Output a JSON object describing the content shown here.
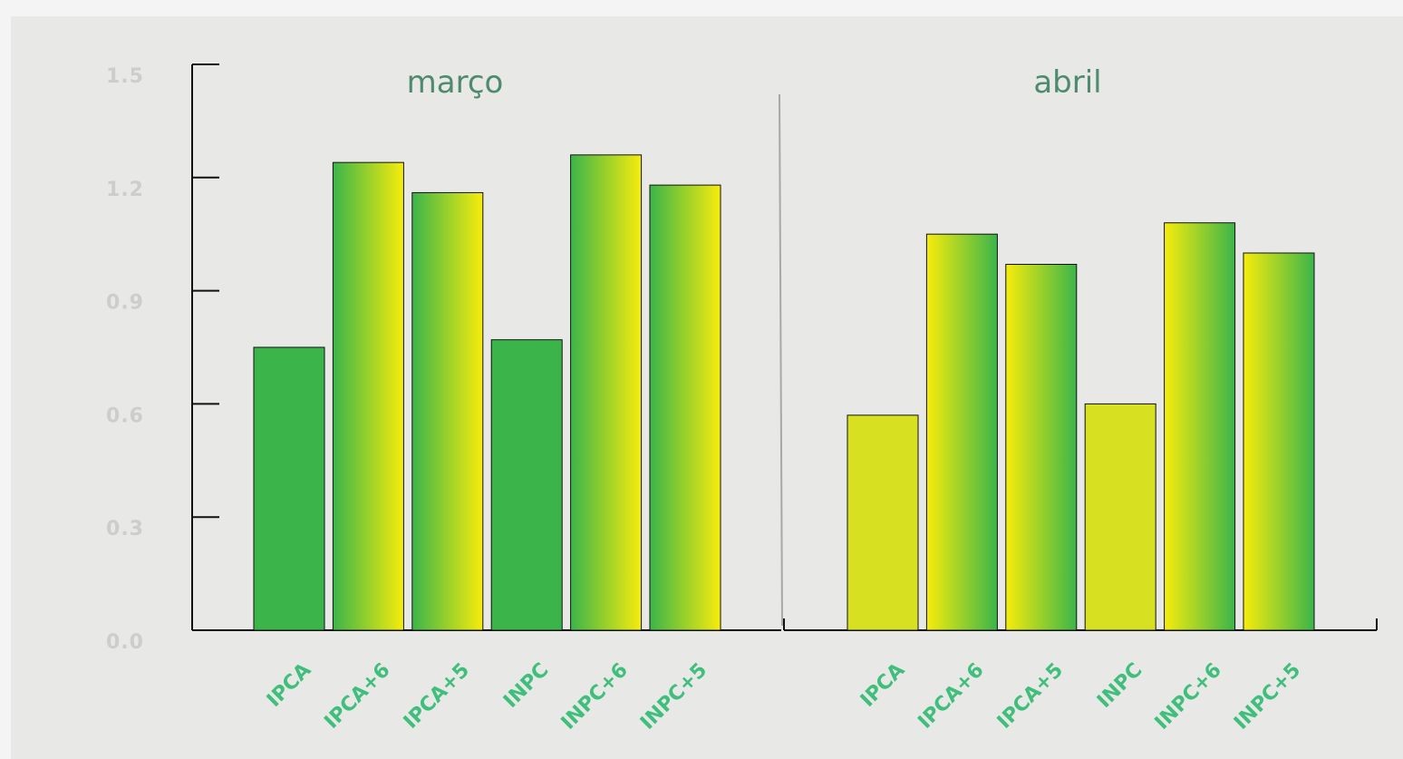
{
  "chart_data": {
    "type": "bar",
    "groups": [
      {
        "title": "março",
        "categories": [
          "IPCA",
          "IPCA+6",
          "IPCA+5",
          "INPC",
          "INPC+6",
          "INPC+5"
        ],
        "values": [
          0.75,
          1.24,
          1.16,
          0.77,
          1.26,
          1.18
        ]
      },
      {
        "title": "abril",
        "categories": [
          "IPCA",
          "IPCA+6",
          "IPCA+5",
          "INPC",
          "INPC+6",
          "INPC+5"
        ],
        "values": [
          0.57,
          1.05,
          0.97,
          0.6,
          1.08,
          1.0
        ]
      }
    ],
    "y_ticks": [
      "0.0",
      "0.3",
      "0.6",
      "0.9",
      "1.2",
      "1.5"
    ],
    "ylim": [
      0,
      1.5
    ],
    "grid": false,
    "colors": {
      "green": "#3bb54a",
      "yellow": "#f7ec0c",
      "lime": "#d7e021",
      "bar_outline": "#111111",
      "axis": "#111111",
      "divider": "#a8a8a8",
      "category_label": "#3fbf7b",
      "tick_label": "#cdcdcb",
      "group_title": "#4e8a6e"
    }
  }
}
